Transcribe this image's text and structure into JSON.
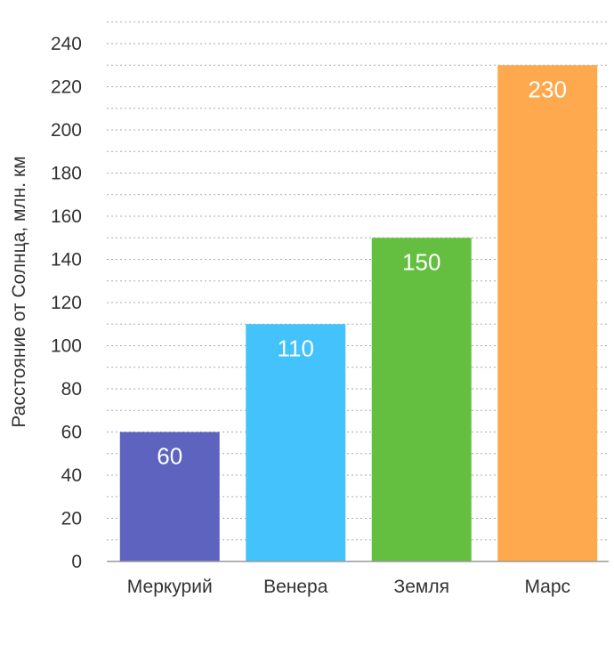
{
  "chart_data": {
    "type": "bar",
    "ylabel": "Расстояние от Солнца, млн. км",
    "ylim": [
      0,
      250
    ],
    "yticks": [
      0,
      20,
      40,
      60,
      80,
      100,
      120,
      140,
      160,
      180,
      200,
      220,
      240
    ],
    "grid": true,
    "categories": [
      "Меркурий",
      "Венера",
      "Земля",
      "Марс"
    ],
    "values": [
      60,
      110,
      150,
      230
    ],
    "value_labels": [
      "60",
      "110",
      "150",
      "230"
    ],
    "colors": [
      "#5e63c0",
      "#44c2fb",
      "#64bf40",
      "#fea94d"
    ],
    "gridline_color": "#a9a9a9",
    "axis_color": "#999999"
  }
}
